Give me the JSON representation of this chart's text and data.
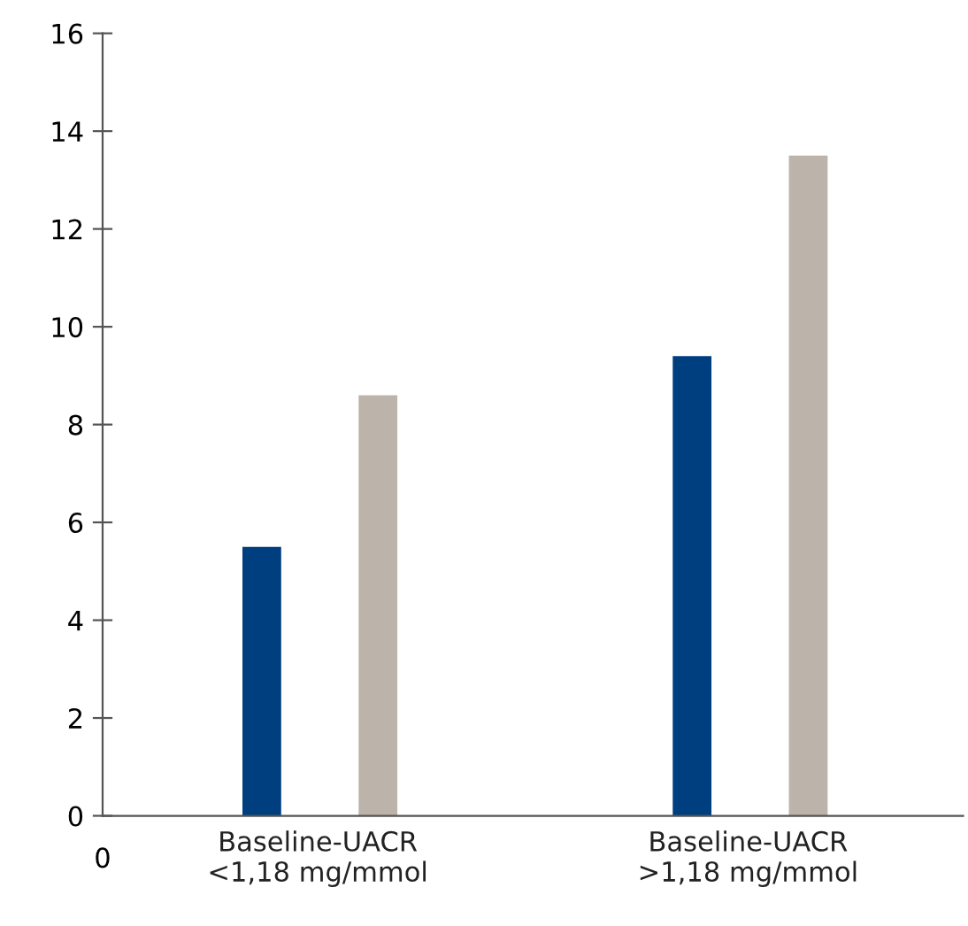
{
  "chart_data": {
    "type": "bar",
    "categories": [
      "Baseline-UACR\n<1,18 mg/mmol",
      "Baseline-UACR\n>1,18 mg/mmol"
    ],
    "series": [
      {
        "color": "#003f7f",
        "values": [
          5.5,
          9.4
        ]
      },
      {
        "color": "#bcb3ab",
        "values": [
          8.6,
          13.5
        ]
      }
    ],
    "ylim": [
      0,
      16
    ],
    "yticks": [
      0,
      2,
      4,
      6,
      8,
      10,
      12,
      14,
      16
    ],
    "grid": false,
    "annotations": [
      "0"
    ]
  }
}
